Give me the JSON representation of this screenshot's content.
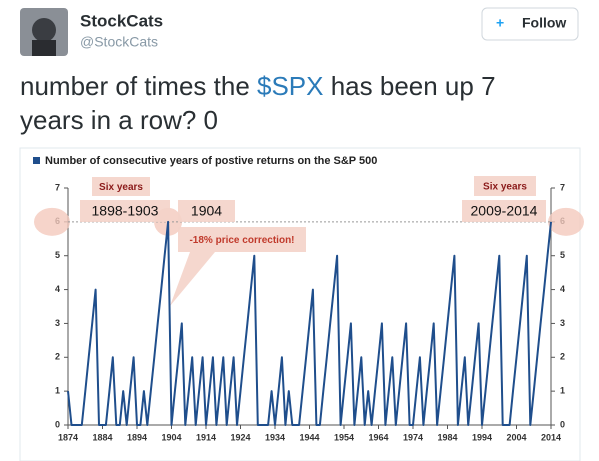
{
  "tweet": {
    "name": "StockCats",
    "handle": "@StockCats",
    "follow": "Follow",
    "text_before": "number of times the ",
    "cashtag": "$SPX",
    "text_after": " has been up 7 years in a row? 0"
  },
  "chart_data": {
    "type": "line",
    "title": "Number of consecutive years of postive returns on the S&P 500",
    "x": [
      1874,
      1875,
      1876,
      1877,
      1878,
      1879,
      1880,
      1881,
      1882,
      1883,
      1884,
      1885,
      1886,
      1887,
      1888,
      1889,
      1890,
      1891,
      1892,
      1893,
      1894,
      1895,
      1896,
      1897,
      1898,
      1899,
      1900,
      1901,
      1902,
      1903,
      1904,
      1905,
      1906,
      1907,
      1908,
      1909,
      1910,
      1911,
      1912,
      1913,
      1914,
      1915,
      1916,
      1917,
      1918,
      1919,
      1920,
      1921,
      1922,
      1923,
      1924,
      1925,
      1926,
      1927,
      1928,
      1929,
      1930,
      1931,
      1932,
      1933,
      1934,
      1935,
      1936,
      1937,
      1938,
      1939,
      1940,
      1941,
      1942,
      1943,
      1944,
      1945,
      1946,
      1947,
      1948,
      1949,
      1950,
      1951,
      1952,
      1953,
      1954,
      1955,
      1956,
      1957,
      1958,
      1959,
      1960,
      1961,
      1962,
      1963,
      1964,
      1965,
      1966,
      1967,
      1968,
      1969,
      1970,
      1971,
      1972,
      1973,
      1974,
      1975,
      1976,
      1977,
      1978,
      1979,
      1980,
      1981,
      1982,
      1983,
      1984,
      1985,
      1986,
      1987,
      1988,
      1989,
      1990,
      1991,
      1992,
      1993,
      1994,
      1995,
      1996,
      1997,
      1998,
      1999,
      2000,
      2001,
      2002,
      2003,
      2004,
      2005,
      2006,
      2007,
      2008,
      2009,
      2010,
      2011,
      2012,
      2013,
      2014
    ],
    "series": [
      {
        "name": "Number of consecutive years of postive returns on the S&P 500",
        "color": "#1f4e8c",
        "values": [
          1,
          0,
          0,
          0,
          0,
          1,
          2,
          3,
          4,
          0,
          0,
          0,
          1,
          2,
          0,
          0,
          1,
          0,
          1,
          2,
          0,
          0,
          1,
          0,
          1,
          2,
          3,
          4,
          5,
          6,
          0,
          1,
          2,
          3,
          0,
          1,
          2,
          0,
          1,
          2,
          0,
          1,
          2,
          0,
          1,
          2,
          0,
          1,
          2,
          0,
          1,
          2,
          3,
          4,
          5,
          0,
          0,
          0,
          0,
          1,
          0,
          1,
          2,
          0,
          1,
          0,
          0,
          0,
          1,
          2,
          3,
          4,
          0,
          0,
          1,
          2,
          3,
          4,
          5,
          0,
          1,
          2,
          3,
          0,
          1,
          2,
          0,
          1,
          0,
          1,
          2,
          3,
          0,
          1,
          2,
          0,
          1,
          2,
          3,
          0,
          0,
          1,
          2,
          0,
          1,
          2,
          3,
          0,
          1,
          2,
          3,
          4,
          5,
          0,
          1,
          2,
          0,
          1,
          2,
          3,
          0,
          1,
          2,
          3,
          4,
          5,
          0,
          0,
          0,
          1,
          2,
          3,
          4,
          5,
          0,
          1,
          2,
          3,
          4,
          5,
          6
        ]
      }
    ],
    "xlim": [
      1874,
      2014
    ],
    "xticks": [
      1874,
      1884,
      1894,
      1904,
      1914,
      1924,
      1934,
      1944,
      1954,
      1964,
      1974,
      1984,
      1994,
      2004,
      2014
    ],
    "ylim": [
      0,
      7
    ],
    "yticks": [
      0,
      1,
      2,
      3,
      4,
      5,
      6,
      7
    ],
    "y2lim": [
      0,
      7
    ],
    "y2ticks": [
      0,
      1,
      2,
      3,
      4,
      5,
      6,
      7
    ],
    "reference_line": 6,
    "annotations": {
      "left_label": "Six years",
      "left_years": "1898-1903",
      "correction_year": "1904",
      "correction": "-18% price correction!",
      "right_label": "Six years",
      "right_years": "2009-2014"
    }
  }
}
